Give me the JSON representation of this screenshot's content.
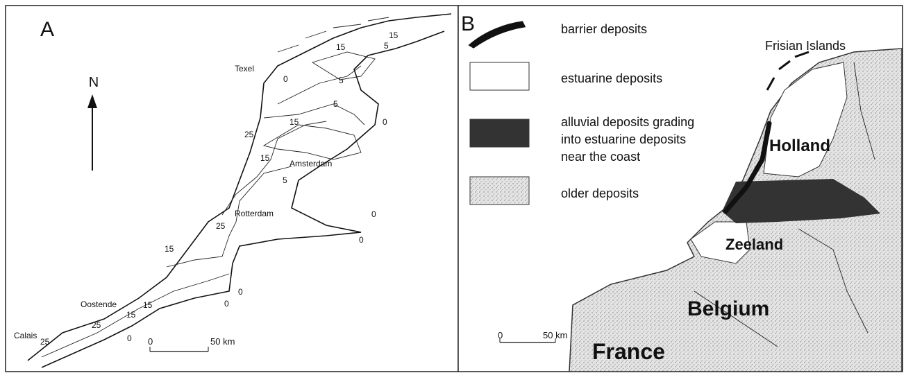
{
  "panel_a": {
    "label": "A",
    "north": "N",
    "places": [
      "Texel",
      "Amsterdam",
      "Rotterdam",
      "Oostende",
      "Calais"
    ],
    "contour_labels": [
      "15",
      "15",
      "5",
      "0",
      "5",
      "5",
      "0",
      "15",
      "25",
      "15",
      "5",
      "0",
      "25",
      "0",
      "15",
      "0",
      "0",
      "15",
      "15",
      "25",
      "0",
      "25"
    ],
    "scale": [
      "0",
      "50 km"
    ]
  },
  "panel_b": {
    "label": "B",
    "legend": [
      "barrier deposits",
      "estuarine deposits",
      [
        "alluvial deposits grading",
        "into estuarine deposits",
        "near the coast"
      ],
      "older deposits"
    ],
    "places": [
      "Frisian Islands",
      "Holland",
      "Zeeland",
      "Belgium",
      "France"
    ],
    "scale": [
      "0",
      "50 km"
    ]
  }
}
